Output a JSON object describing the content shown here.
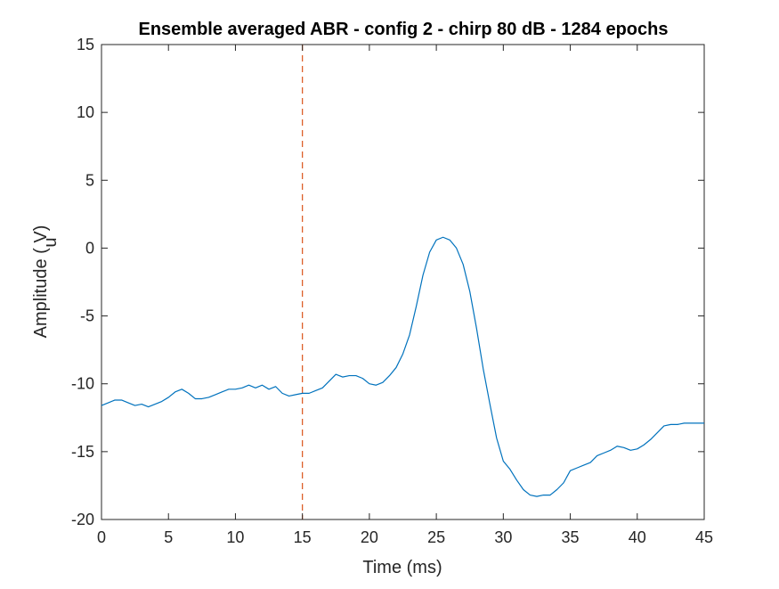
{
  "chart_data": {
    "type": "line",
    "title": "Ensemble averaged ABR - config 2 - chirp 80 dB - 1284 epochs",
    "xlabel": "Time (ms)",
    "ylabel": "Amplitude ( V)",
    "ylabel_sub": "u",
    "xlim": [
      0,
      45
    ],
    "ylim": [
      -20,
      15
    ],
    "xticks": [
      0,
      5,
      10,
      15,
      20,
      25,
      30,
      35,
      40,
      45
    ],
    "yticks": [
      -20,
      -15,
      -10,
      -5,
      0,
      5,
      10,
      15
    ],
    "xtick_labels": [
      "0",
      "5",
      "10",
      "15",
      "20",
      "25",
      "30",
      "35",
      "40",
      "45"
    ],
    "ytick_labels": [
      "-20",
      "-15",
      "-10",
      "-5",
      "0",
      "5",
      "10",
      "15"
    ],
    "grid": false,
    "series": [
      {
        "color": "#0072BD",
        "x": [
          0,
          0.5,
          1,
          1.5,
          2,
          2.5,
          3,
          3.5,
          4,
          4.5,
          5,
          5.5,
          6,
          6.5,
          7,
          7.5,
          8,
          8.5,
          9,
          9.5,
          10,
          10.5,
          11,
          11.5,
          12,
          12.5,
          13,
          13.5,
          14,
          14.5,
          15,
          15.5,
          16,
          16.5,
          17,
          17.5,
          18,
          18.5,
          19,
          19.5,
          20,
          20.5,
          21,
          21.5,
          22,
          22.5,
          23,
          23.5,
          24,
          24.5,
          25,
          25.5,
          26,
          26.5,
          27,
          27.5,
          28,
          28.5,
          29,
          29.5,
          30,
          30.5,
          31,
          31.5,
          32,
          32.5,
          33,
          33.5,
          34,
          34.5,
          35,
          35.5,
          36,
          36.5,
          37,
          37.5,
          38,
          38.5,
          39,
          39.5,
          40,
          40.5,
          41,
          41.5,
          42,
          42.5,
          43,
          43.5,
          44,
          44.5,
          45
        ],
        "y": [
          -11.6,
          -11.4,
          -11.2,
          -11.2,
          -11.4,
          -11.6,
          -11.5,
          -11.7,
          -11.5,
          -11.3,
          -11.0,
          -10.6,
          -10.4,
          -10.7,
          -11.1,
          -11.1,
          -11.0,
          -10.8,
          -10.6,
          -10.4,
          -10.4,
          -10.3,
          -10.1,
          -10.3,
          -10.1,
          -10.4,
          -10.2,
          -10.7,
          -10.9,
          -10.8,
          -10.7,
          -10.7,
          -10.5,
          -10.3,
          -9.8,
          -9.3,
          -9.5,
          -9.4,
          -9.4,
          -9.6,
          -10.0,
          -10.1,
          -9.9,
          -9.4,
          -8.8,
          -7.8,
          -6.4,
          -4.3,
          -2.0,
          -0.3,
          0.6,
          0.8,
          0.6,
          0.0,
          -1.2,
          -3.2,
          -5.9,
          -8.9,
          -11.5,
          -14.0,
          -15.7,
          -16.3,
          -17.1,
          -17.8,
          -18.2,
          -18.3,
          -18.2,
          -18.2,
          -17.8,
          -17.3,
          -16.4,
          -16.2,
          -16.0,
          -15.8,
          -15.3,
          -15.1,
          -14.9,
          -14.6,
          -14.7,
          -14.9,
          -14.8,
          -14.5,
          -14.1,
          -13.6,
          -13.1,
          -13.0,
          -13.0,
          -12.9,
          -12.9,
          -12.9,
          -12.9
        ]
      }
    ],
    "reference_line": {
      "x": 15,
      "color": "#D95319",
      "style": "dashed"
    }
  }
}
